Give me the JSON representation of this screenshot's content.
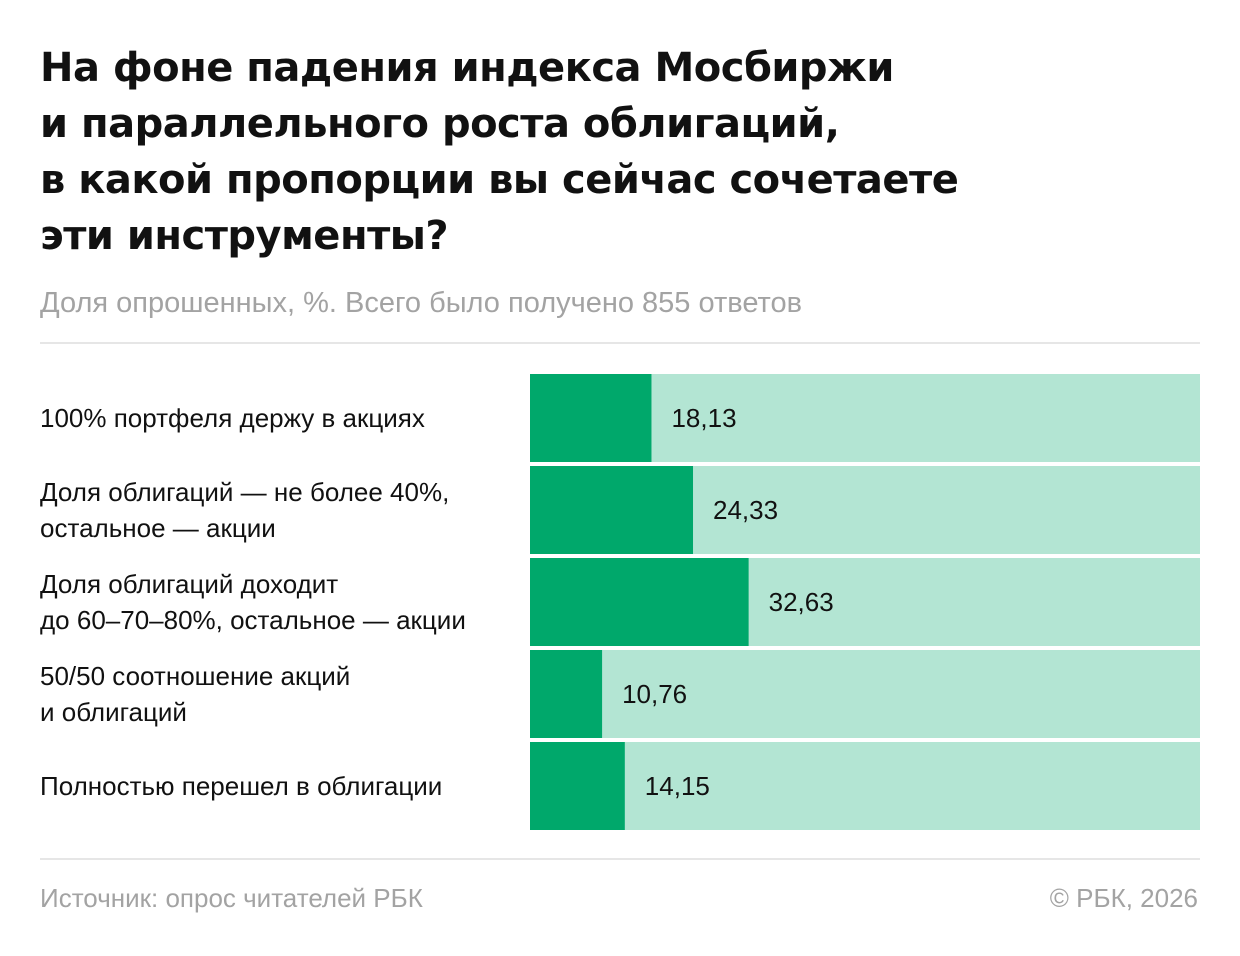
{
  "title_lines": [
    "На фоне падения индекса Мосбиржи",
    "и параллельного роста облигаций,",
    "в какой пропорции вы сейчас сочетаете",
    "эти инструменты?"
  ],
  "subtitle": "Доля опрошенных, %. Всего было получено 855 ответов",
  "source": "Источник: опрос читателей РБК",
  "copyright": "© РБК, 2026",
  "colors": {
    "bar": "#00a86b",
    "track": "#b3e5d3",
    "text": "#111111",
    "muted": "#a3a3a3"
  },
  "chart_data": {
    "type": "bar",
    "orientation": "horizontal",
    "xlim": [
      0,
      100
    ],
    "categories": [
      [
        "100% портфеля держу в акциях"
      ],
      [
        "Доля облигаций — не более 40%,",
        "остальное — акции"
      ],
      [
        "Доля облигаций доходит",
        "до 60–70–80%, остальное — акции"
      ],
      [
        "50/50 соотношение акций",
        "и облигаций"
      ],
      [
        "Полностью перешел в облигации"
      ]
    ],
    "values": [
      18.13,
      24.33,
      32.63,
      10.76,
      14.15
    ],
    "value_labels": [
      "18,13",
      "24,33",
      "32,63",
      "10,76",
      "14,15"
    ]
  }
}
